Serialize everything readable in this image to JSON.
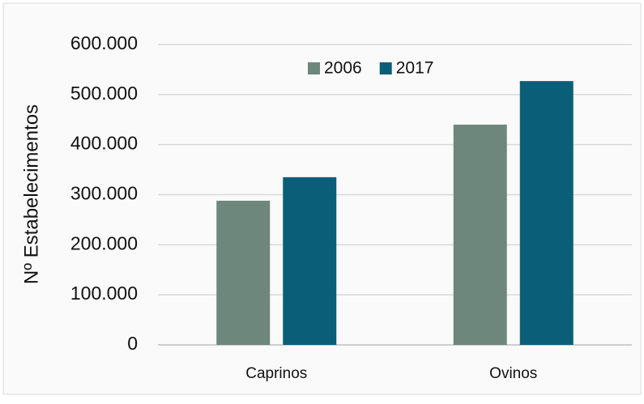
{
  "chart_data": {
    "type": "bar",
    "ylabel": "Nº Estabelecimentos",
    "categories": [
      "Caprinos",
      "Ovinos"
    ],
    "series": [
      {
        "name": "2006",
        "color": "#6e877d",
        "values": [
          288000,
          440000
        ]
      },
      {
        "name": "2017",
        "color": "#0b5e78",
        "values": [
          335000,
          527000
        ]
      }
    ],
    "ylim": [
      0,
      600000
    ],
    "yticks": [
      0,
      {
        "value": 100000,
        "label": "100.000"
      },
      {
        "value": 200000,
        "label": "200.000"
      },
      {
        "value": 300000,
        "label": "300.000"
      },
      {
        "value": 400000,
        "label": "400.000"
      },
      {
        "value": 500000,
        "label": "500.000"
      },
      {
        "value": 600000,
        "label": "600.000"
      }
    ],
    "grid": true,
    "legend": "top"
  }
}
